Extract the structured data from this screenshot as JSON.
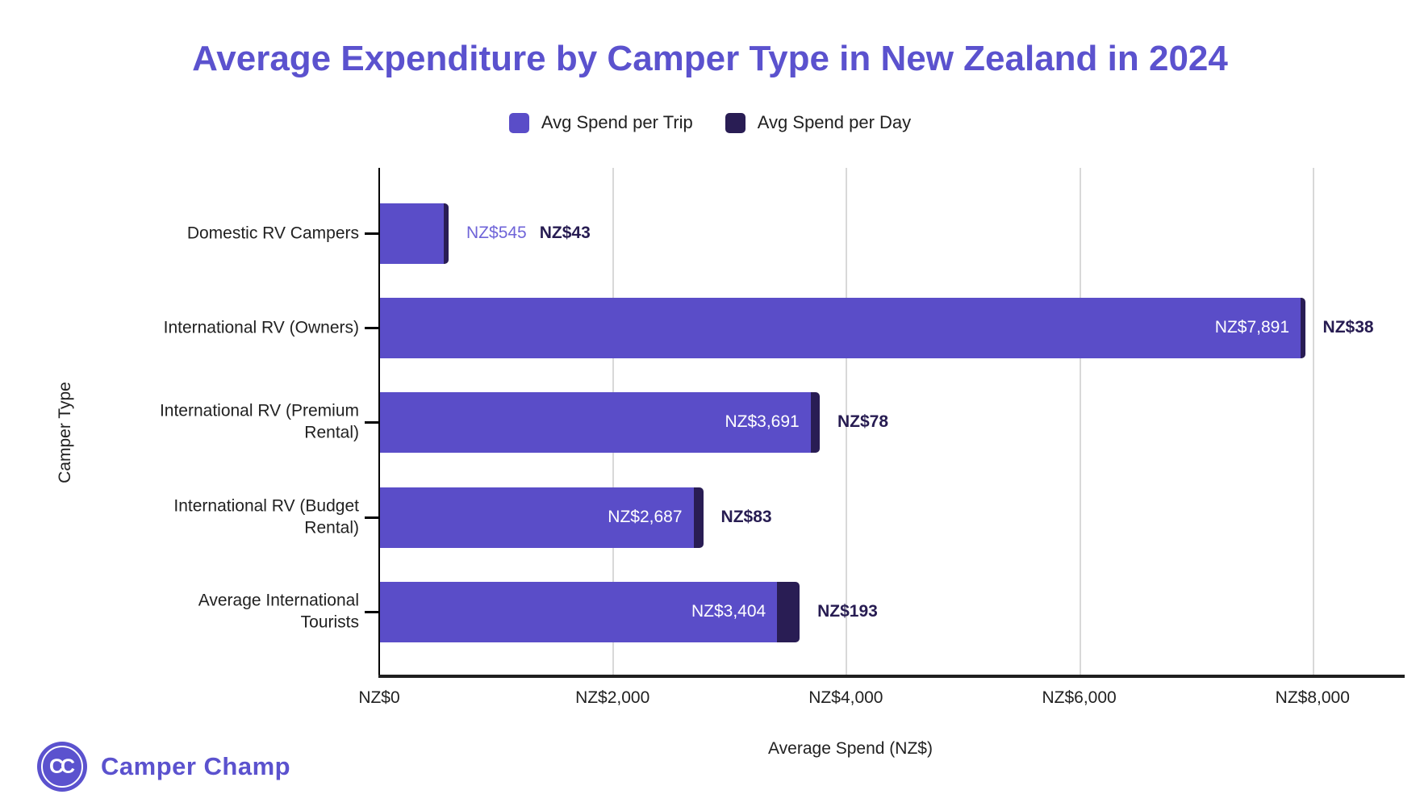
{
  "title": "Average Expenditure by Camper Type in New Zealand in 2024",
  "axes": {
    "x_title": "Average Spend (NZ$)",
    "y_title": "Camper Type"
  },
  "branding": {
    "logo_initials": "CC",
    "logo_name": "Camper Champ"
  },
  "colors": {
    "title": "#5B52CE",
    "bar_trip": "#5A4DC8",
    "bar_day": "#291D54",
    "trip_label_outside": "#6F64D8",
    "day_label": "#271C52",
    "text": "#212121",
    "grid": "#D8D8D8",
    "axis": "#111111"
  },
  "chart_data": {
    "type": "bar",
    "orientation": "horizontal",
    "stacked": true,
    "grid": true,
    "legend_position": "top",
    "title": "Average Expenditure by Camper Type in New Zealand in 2024",
    "xlabel": "Average Spend (NZ$)",
    "ylabel": "Camper Type",
    "xlim": [
      0,
      8000
    ],
    "x_ticks": [
      {
        "value": 0,
        "label": "NZ$0"
      },
      {
        "value": 2000,
        "label": "NZ$2,000"
      },
      {
        "value": 4000,
        "label": "NZ$4,000"
      },
      {
        "value": 6000,
        "label": "NZ$6,000"
      },
      {
        "value": 8000,
        "label": "NZ$8,000"
      }
    ],
    "categories": [
      "Domestic RV Campers",
      "International RV (Owners)",
      "International RV (Premium Rental)",
      "International RV (Budget Rental)",
      "Average International Tourists"
    ],
    "category_lines": [
      [
        "Domestic RV Campers"
      ],
      [
        "International RV (Owners)"
      ],
      [
        "International RV (Premium",
        "Rental)"
      ],
      [
        "International RV (Budget",
        "Rental)"
      ],
      [
        "Average International",
        "Tourists"
      ]
    ],
    "series": [
      {
        "name": "Avg Spend per Trip",
        "color": "#5A4DC8",
        "values": [
          545,
          7891,
          3691,
          2687,
          3404
        ],
        "value_labels": [
          "NZ$545",
          "NZ$7,891",
          "NZ$3,691",
          "NZ$2,687",
          "NZ$3,404"
        ]
      },
      {
        "name": "Avg Spend per Day",
        "color": "#291D54",
        "values": [
          43,
          38,
          78,
          83,
          193
        ],
        "value_labels": [
          "NZ$43",
          "NZ$38",
          "NZ$78",
          "NZ$83",
          "NZ$193"
        ]
      }
    ]
  }
}
